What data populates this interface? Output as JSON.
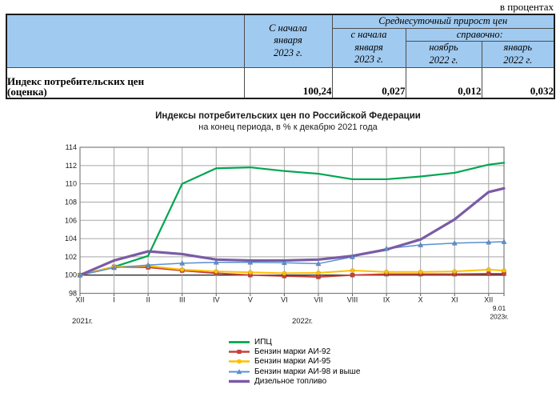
{
  "header": {
    "units_label": "в процентах"
  },
  "table": {
    "headers": {
      "since_jan_2023": "С начала\nянваря\n2023 г.",
      "avg_daily_growth": "Среднесуточный прирост цен",
      "avg_since_jan_2023": "с начала\nянваря\n2023 г.",
      "reference": "справочно:",
      "nov_2022": "ноябрь\n2022 г.",
      "jan_2022": "январь\n2022 г."
    },
    "rows": [
      {
        "label": "Индекс потребительских цен\n(оценка)",
        "values": [
          "100,24",
          "0,027",
          "0,012",
          "0,032"
        ]
      }
    ]
  },
  "chart_data": {
    "type": "line",
    "title": "Индексы потребительских цен по Российской Федерации",
    "subtitle": "на конец периода, в % к декабрю 2021 года",
    "x_labels": [
      "XII",
      "I",
      "II",
      "III",
      "IV",
      "V",
      "VI",
      "VII",
      "VIII",
      "IX",
      "X",
      "XI",
      "XII"
    ],
    "x_axis_years": {
      "start": "2021г.",
      "middle": "2022г."
    },
    "end_point_label": {
      "line1": "9.01",
      "line2": "2023г."
    },
    "ylim": [
      98,
      114
    ],
    "ytick_step": 2,
    "grid": true,
    "baseline_value": 100,
    "legend_position": "bottom",
    "series": [
      {
        "name": "ИПЦ",
        "color": "#00A64F",
        "marker": "none",
        "width": 2.2,
        "values": [
          100,
          100.9,
          102.1,
          110.0,
          111.7,
          111.8,
          111.4,
          111.1,
          110.5,
          110.5,
          110.8,
          111.2,
          112.1,
          112.3
        ]
      },
      {
        "name": "Бензин марки АИ-92",
        "color": "#C4413C",
        "marker": "square",
        "width": 2,
        "values": [
          100,
          100.9,
          100.85,
          100.5,
          100.2,
          100.0,
          99.9,
          99.8,
          100.0,
          100.1,
          100.1,
          100.1,
          100.15,
          100.15
        ]
      },
      {
        "name": "Бензин марки АИ-95",
        "color": "#FFC000",
        "marker": "circle",
        "width": 2,
        "values": [
          100,
          100.9,
          101.0,
          100.6,
          100.4,
          100.3,
          100.2,
          100.25,
          100.5,
          100.35,
          100.35,
          100.4,
          100.6,
          100.5
        ]
      },
      {
        "name": "Бензин марки АИ-98 и выше",
        "color": "#5B8FD0",
        "marker": "triangle",
        "width": 1.5,
        "values": [
          100,
          100.8,
          101.1,
          101.3,
          101.4,
          101.4,
          101.35,
          101.25,
          102.0,
          102.9,
          103.3,
          103.5,
          103.6,
          103.65
        ]
      },
      {
        "name": "Дизельное топливо",
        "color": "#7A5BA5",
        "marker": "none",
        "width": 3.2,
        "values": [
          100,
          101.6,
          102.6,
          102.3,
          101.7,
          101.6,
          101.6,
          101.7,
          102.1,
          102.8,
          103.9,
          106.1,
          109.1,
          109.5
        ]
      }
    ]
  }
}
